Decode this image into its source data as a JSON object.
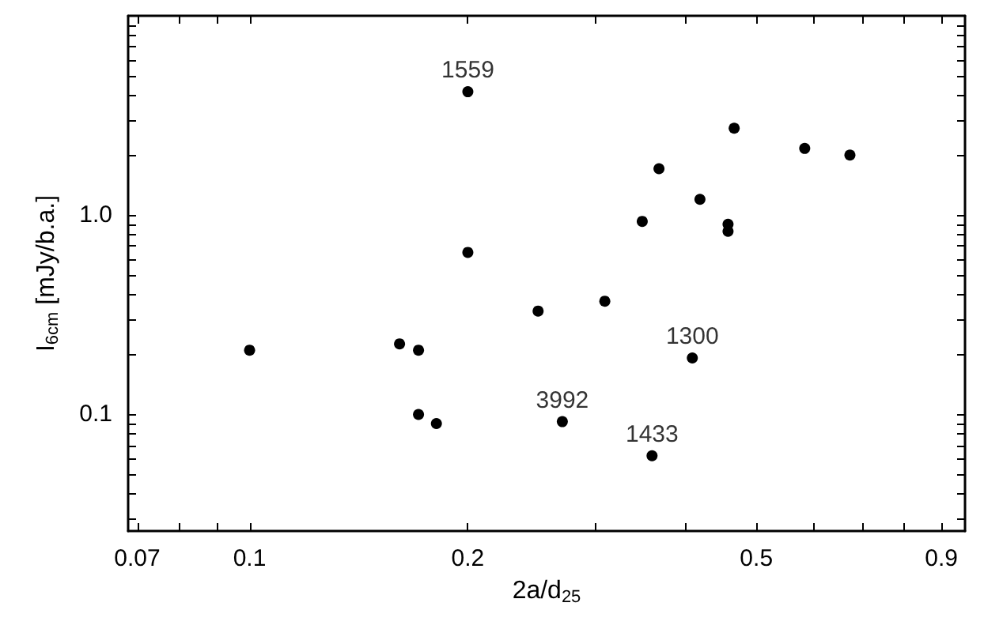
{
  "chart_data": {
    "type": "scatter",
    "xlabel": "2a/d$_{25}$",
    "ylabel": "I$_{6cm}$ [mJy/b.a.]",
    "log": "xy",
    "marker": "circle",
    "xlim": [
      0.068,
      0.97
    ],
    "ylim": [
      0.026,
      10
    ],
    "xticks": [
      0.07,
      {
        "value": 0.08,
        "label": null
      },
      {
        "value": 0.09,
        "label": null
      },
      0.1,
      0.2,
      {
        "value": 0.3,
        "label": null
      },
      {
        "value": 0.4,
        "label": null
      },
      0.5,
      {
        "value": 0.6,
        "label": null
      },
      {
        "value": 0.7,
        "label": null
      },
      {
        "value": 0.8,
        "label": null
      },
      0.9
    ],
    "yticks": [
      {
        "value": 0.03,
        "label": null
      },
      {
        "value": 0.04,
        "label": null
      },
      {
        "value": 0.05,
        "label": null
      },
      {
        "value": 0.06,
        "label": null
      },
      {
        "value": 0.07,
        "label": null
      },
      {
        "value": 0.08,
        "label": null
      },
      {
        "value": 0.09,
        "label": null
      },
      0.1,
      {
        "value": 0.2,
        "label": null
      },
      {
        "value": 0.3,
        "label": null
      },
      {
        "value": 0.4,
        "label": null
      },
      {
        "value": 0.5,
        "label": null
      },
      {
        "value": 0.6,
        "label": null
      },
      {
        "value": 0.7,
        "label": null
      },
      {
        "value": 0.8,
        "label": null
      },
      {
        "value": 0.9,
        "label": null
      },
      {
        "value": 1,
        "label": "1.0"
      },
      {
        "value": 2,
        "label": null
      },
      {
        "value": 3,
        "label": null
      },
      {
        "value": 4,
        "label": null
      },
      {
        "value": 5,
        "label": null
      },
      {
        "value": 6,
        "label": null
      },
      {
        "value": 7,
        "label": null
      },
      {
        "value": 8,
        "label": null
      },
      {
        "value": 9,
        "label": null
      }
    ],
    "series": [
      {
        "color": "#000000",
        "x": [
          0.1,
          0.161,
          0.171,
          0.171,
          0.181,
          0.2,
          0.2,
          0.25,
          0.309,
          0.27,
          0.359,
          0.408,
          0.348,
          0.367,
          0.418,
          0.457,
          0.457,
          0.466,
          0.583,
          0.673
        ],
        "values": [
          0.21,
          0.226,
          0.21,
          0.1,
          0.09,
          4.16,
          0.65,
          0.33,
          0.37,
          0.092,
          0.062,
          0.192,
          0.93,
          1.71,
          1.2,
          0.9,
          0.83,
          2.73,
          2.16,
          2.0
        ]
      }
    ],
    "annotations": [
      {
        "text": "1559",
        "x": 0.2,
        "y": 4.16
      },
      {
        "text": "3992",
        "x": 0.27,
        "y": 0.092
      },
      {
        "text": "1300",
        "x": 0.408,
        "y": 0.192
      },
      {
        "text": "1433",
        "x": 0.359,
        "y": 0.062
      }
    ]
  }
}
